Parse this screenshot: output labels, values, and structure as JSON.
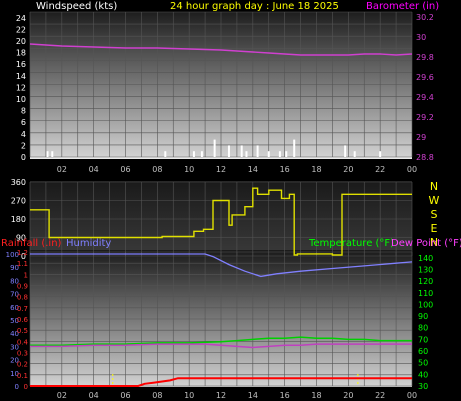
{
  "header": {
    "left_label": "Windspeed (kts)",
    "center_label": "24 hour graph day : June 18 2025",
    "right_label": "Barometer (in)"
  },
  "colors": {
    "wind": "#ffffff",
    "barometer": "#d040d0",
    "direction": "#e0e000",
    "rain": "#ff0000",
    "humidity": "#8080ff",
    "temperature": "#00d000",
    "dewpoint": "#c040c0",
    "day_ticks": "#ffff00",
    "compass": "#ffff00",
    "x_ticks": "#c0c0c0",
    "rain_axis": "#ff3030",
    "humidity_axis": "#8080ff",
    "temp_axis": "#00ff00"
  },
  "x_ticks": [
    "02",
    "04",
    "06",
    "08",
    "10",
    "12",
    "14",
    "16",
    "18",
    "20",
    "22",
    "00"
  ],
  "chart_data": [
    {
      "type": "bar",
      "title": "24 hour graph day : June 18 2025",
      "ylabel": "Windspeed (kts)",
      "yticks": [
        "0",
        "2",
        "4",
        "6",
        "8",
        "10",
        "12",
        "14",
        "16",
        "18",
        "20",
        "22",
        "24"
      ],
      "ylim": [
        0,
        25
      ],
      "x_hours": [
        1.1,
        1.4,
        8.5,
        10.3,
        10.8,
        11.6,
        12.5,
        13.3,
        13.6,
        14.3,
        15.0,
        15.7,
        16.1,
        16.6,
        19.8,
        20.4,
        22.0
      ],
      "values": [
        1,
        1,
        1,
        1,
        1,
        3,
        2,
        2,
        1,
        2,
        1,
        1,
        1,
        3,
        2,
        1,
        1
      ]
    },
    {
      "type": "line",
      "ylabel": "Barometer (in)",
      "yticks": [
        "28.8",
        "29",
        "29.2",
        "29.4",
        "29.6",
        "29.8",
        "30",
        "30.2"
      ],
      "ylim": [
        28.8,
        30.25
      ],
      "x": [
        0,
        2,
        4,
        6,
        8,
        10,
        12,
        14,
        15,
        16,
        17,
        18,
        19,
        20,
        21,
        22,
        23,
        24
      ],
      "values": [
        29.93,
        29.91,
        29.9,
        29.89,
        29.89,
        29.88,
        29.87,
        29.85,
        29.84,
        29.83,
        29.82,
        29.82,
        29.82,
        29.82,
        29.83,
        29.83,
        29.82,
        29.83
      ]
    },
    {
      "type": "line",
      "ylabel": "Wind direction",
      "yticks": [
        "0",
        "90",
        "180",
        "270",
        "360"
      ],
      "compass": [
        "N",
        "W",
        "S",
        "E",
        "N"
      ],
      "ylim": [
        0,
        360
      ],
      "x": [
        0,
        1.2,
        1.2,
        8.3,
        8.3,
        10.3,
        10.3,
        10.9,
        10.9,
        11.5,
        11.5,
        12.5,
        12.5,
        12.7,
        12.7,
        13.5,
        13.5,
        14.0,
        14.0,
        14.3,
        14.3,
        15.0,
        15.0,
        15.8,
        15.8,
        16.3,
        16.3,
        16.6,
        16.6,
        16.8,
        16.8,
        19.0,
        19.0,
        19.6,
        19.6,
        24
      ],
      "values": [
        225,
        225,
        90,
        90,
        95,
        95,
        120,
        120,
        130,
        130,
        270,
        270,
        150,
        150,
        200,
        200,
        240,
        240,
        330,
        330,
        300,
        300,
        320,
        320,
        280,
        280,
        300,
        300,
        5,
        5,
        10,
        10,
        5,
        5,
        300,
        300
      ]
    },
    {
      "type": "line",
      "ylabel": "Humidity",
      "yticks": [
        "0",
        "10",
        "20",
        "30",
        "40",
        "50",
        "60",
        "70",
        "80",
        "90",
        "100"
      ],
      "ylim": [
        0,
        100
      ],
      "x": [
        0,
        11,
        11.5,
        12.5,
        13.5,
        14.5,
        15.5,
        17,
        19,
        21,
        23,
        24
      ],
      "values": [
        100,
        100,
        98,
        92,
        87,
        83,
        85,
        87,
        89,
        91,
        93,
        94
      ]
    },
    {
      "type": "line",
      "ylabel": "Rainfall (.in)",
      "yticks": [
        "0",
        "0.1",
        "0.2",
        "0.3",
        "0.4",
        "0.5",
        "0.6",
        "0.7",
        "0.8",
        "0.9",
        "1",
        "1.1",
        "1.2"
      ],
      "ylim": [
        0,
        1.2
      ],
      "x": [
        0,
        6.8,
        7.2,
        7.8,
        8.8,
        9.3,
        24
      ],
      "values": [
        0,
        0,
        0.02,
        0.03,
        0.05,
        0.07,
        0.07
      ],
      "day_marks": [
        5.2,
        20.6
      ]
    },
    {
      "type": "line",
      "ylabel": "Temperature (°F)",
      "yticks": [
        "30",
        "40",
        "50",
        "60",
        "70",
        "80",
        "90",
        "100",
        "110",
        "120",
        "130",
        "140"
      ],
      "ylim": [
        30,
        145
      ],
      "x": [
        0,
        2,
        4,
        6,
        8,
        10,
        12,
        13,
        14,
        15,
        16,
        17,
        18,
        19,
        20,
        21,
        22,
        23,
        24
      ],
      "values": [
        65,
        65,
        66,
        66,
        67,
        67,
        68,
        69,
        70,
        71,
        71,
        72,
        71,
        71,
        70,
        70,
        69,
        69,
        69
      ]
    },
    {
      "type": "line",
      "ylabel": "Dew Point (°F)",
      "x": [
        0,
        2,
        4,
        6,
        8,
        10,
        11,
        12,
        13,
        14,
        15,
        16,
        17,
        18,
        19,
        20,
        21,
        22,
        23,
        24
      ],
      "values": [
        64,
        64,
        65,
        65,
        66,
        66,
        66,
        65,
        64,
        63,
        64,
        65,
        65,
        66,
        66,
        66,
        66,
        66,
        66,
        66
      ]
    }
  ],
  "legend": {
    "rainfall": "Rainfall (.in)",
    "humidity": "Humidity",
    "temperature": "Temperature (°F)",
    "dewpoint": "Dew Point (°F)"
  }
}
